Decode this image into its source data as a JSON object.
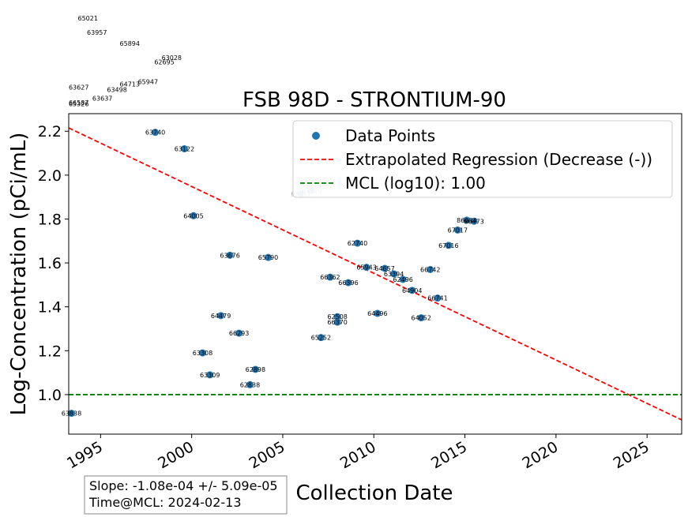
{
  "chart_data": {
    "type": "scatter",
    "title": "FSB 98D - STRONTIUM-90",
    "xlabel": "Collection Date",
    "ylabel": "Log-Concentration (pCi/mL)",
    "xlim": [
      1993.25,
      2026.9
    ],
    "ylim": [
      0.82,
      2.28
    ],
    "x_ticks": [
      1995,
      2000,
      2005,
      2010,
      2015,
      2020,
      2025
    ],
    "y_ticks": [
      1.0,
      1.2,
      1.4,
      1.6,
      1.8,
      2.0,
      2.2
    ],
    "legend_position": "top-right",
    "legend": {
      "points": "Data Points",
      "regression": "Extrapolated Regression (Decrease (-))",
      "mcl": "MCL (log10): 1.00"
    },
    "colors": {
      "points": "#1f77b4",
      "regression": "#ff0000",
      "mcl": "#008000"
    },
    "regression_line": {
      "x": [
        1993.25,
        2026.9
      ],
      "y": [
        2.215,
        0.885
      ]
    },
    "mcl_value": 1.0,
    "points": [
      {
        "x": 1993.4,
        "y": 0.915,
        "label": "63838"
      },
      {
        "x": 1998.0,
        "y": 2.195,
        "label": "63740"
      },
      {
        "x": 1999.6,
        "y": 2.12,
        "label": "63122"
      },
      {
        "x": 2000.1,
        "y": 1.815,
        "label": "64005"
      },
      {
        "x": 2000.6,
        "y": 1.19,
        "label": "63308"
      },
      {
        "x": 2001.0,
        "y": 1.09,
        "label": "63309"
      },
      {
        "x": 2001.6,
        "y": 1.36,
        "label": "64479"
      },
      {
        "x": 2002.1,
        "y": 1.635,
        "label": "63676"
      },
      {
        "x": 2002.6,
        "y": 1.28,
        "label": "66293"
      },
      {
        "x": 2003.2,
        "y": 1.045,
        "label": "62838"
      },
      {
        "x": 2003.5,
        "y": 1.115,
        "label": "62898"
      },
      {
        "x": 2004.2,
        "y": 1.625,
        "label": "65790"
      },
      {
        "x": 2007.1,
        "y": 1.26,
        "label": "65252"
      },
      {
        "x": 2007.6,
        "y": 1.535,
        "label": "66362"
      },
      {
        "x": 2008.0,
        "y": 1.355,
        "label": "62508"
      },
      {
        "x": 2008.0,
        "y": 1.33,
        "label": "66370"
      },
      {
        "x": 2008.6,
        "y": 1.51,
        "label": "66396"
      },
      {
        "x": 2009.1,
        "y": 1.69,
        "label": "62740"
      },
      {
        "x": 2009.6,
        "y": 1.58,
        "label": "65943"
      },
      {
        "x": 2010.2,
        "y": 1.37,
        "label": "64496"
      },
      {
        "x": 2010.6,
        "y": 1.575,
        "label": "64657"
      },
      {
        "x": 2011.1,
        "y": 1.55,
        "label": "63394"
      },
      {
        "x": 2011.6,
        "y": 1.525,
        "label": "62496"
      },
      {
        "x": 2012.1,
        "y": 1.475,
        "label": "64904"
      },
      {
        "x": 2012.6,
        "y": 1.35,
        "label": "64052"
      },
      {
        "x": 2013.1,
        "y": 1.57,
        "label": "66742"
      },
      {
        "x": 2013.5,
        "y": 1.44,
        "label": "66741"
      },
      {
        "x": 2014.1,
        "y": 1.68,
        "label": "67016"
      },
      {
        "x": 2014.6,
        "y": 1.75,
        "label": "67017"
      },
      {
        "x": 2015.1,
        "y": 1.795,
        "label": "86034"
      },
      {
        "x": 2015.5,
        "y": 1.79,
        "label": "86473"
      }
    ],
    "faded_labels": [
      {
        "x": 2006.0,
        "y": 1.915,
        "label": "63811"
      },
      {
        "x": 2006.6,
        "y": 1.93,
        "label": "64519"
      }
    ],
    "overflow_labels": [
      {
        "x": 1994.3,
        "y": 2.715,
        "label": "65021"
      },
      {
        "x": 1994.8,
        "y": 2.65,
        "label": "63957"
      },
      {
        "x": 1996.6,
        "y": 2.6,
        "label": "65894"
      },
      {
        "x": 1998.9,
        "y": 2.535,
        "label": "63028"
      },
      {
        "x": 1998.5,
        "y": 2.515,
        "label": "62695"
      },
      {
        "x": 1997.6,
        "y": 2.425,
        "label": "65947"
      },
      {
        "x": 1996.6,
        "y": 2.415,
        "label": "64713"
      },
      {
        "x": 1995.9,
        "y": 2.39,
        "label": "63498"
      },
      {
        "x": 1993.8,
        "y": 2.4,
        "label": "63627"
      },
      {
        "x": 1995.1,
        "y": 2.35,
        "label": "63637"
      },
      {
        "x": 1993.8,
        "y": 2.33,
        "label": "66587"
      },
      {
        "x": 1993.8,
        "y": 2.325,
        "label": "65326"
      }
    ],
    "stats": {
      "line1": "Slope: -1.08e-04 +/- 5.09e-05",
      "line2": "Time@MCL: 2024-02-13"
    }
  }
}
